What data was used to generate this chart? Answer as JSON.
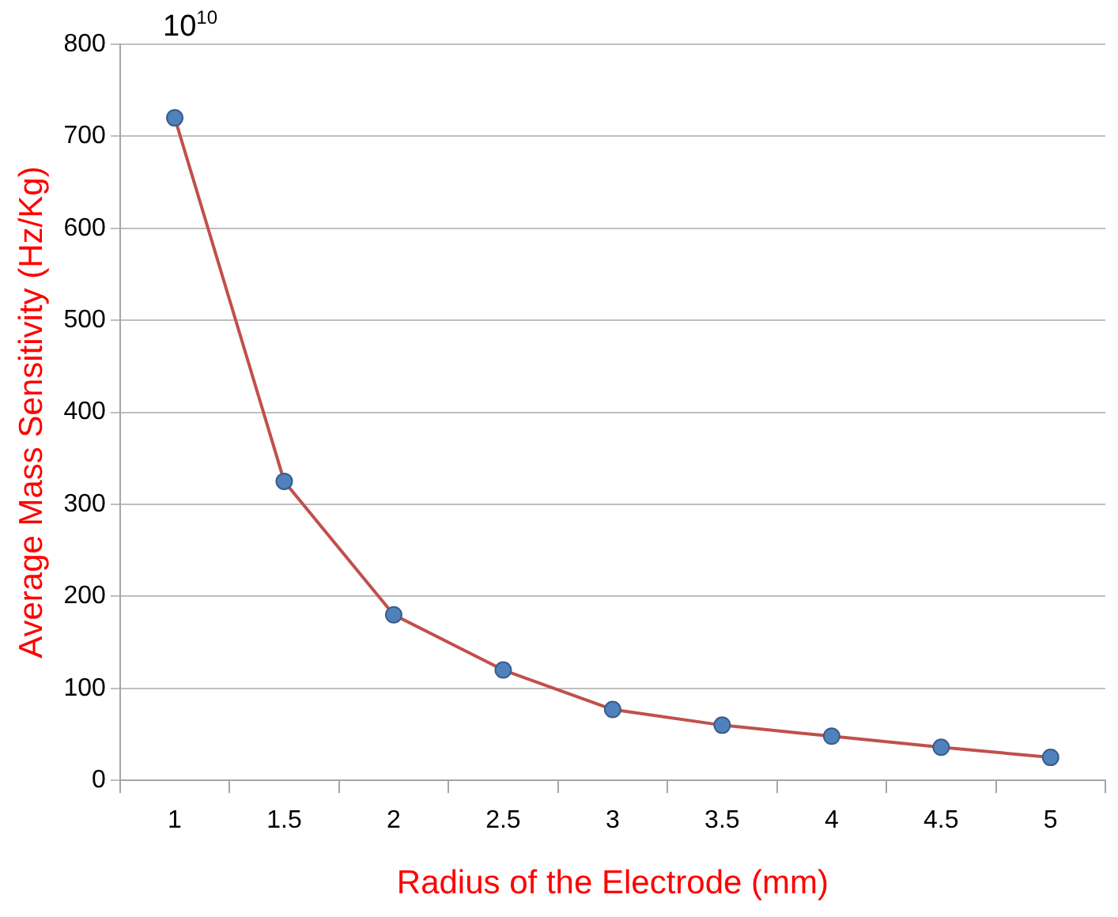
{
  "chart_data": {
    "type": "line",
    "xlabel": "Radius of the Electrode (mm)",
    "ylabel": "Average Mass Sensitivity (Hz/Kg)",
    "annotations": [
      "10$^{10}$"
    ],
    "categories": [
      "1",
      "1.5",
      "2",
      "2.5",
      "3",
      "3.5",
      "4",
      "4.5",
      "5"
    ],
    "series": [
      {
        "color": "#c0504d",
        "values": [
          720,
          325,
          180,
          120,
          77,
          60,
          48,
          36,
          25
        ]
      }
    ],
    "ylim": [
      0,
      800
    ],
    "yticks": [
      0,
      100,
      200,
      300,
      400,
      500,
      600,
      700,
      800
    ],
    "grid": "y",
    "legend": false,
    "marker": "circle",
    "line_style": "solid"
  }
}
